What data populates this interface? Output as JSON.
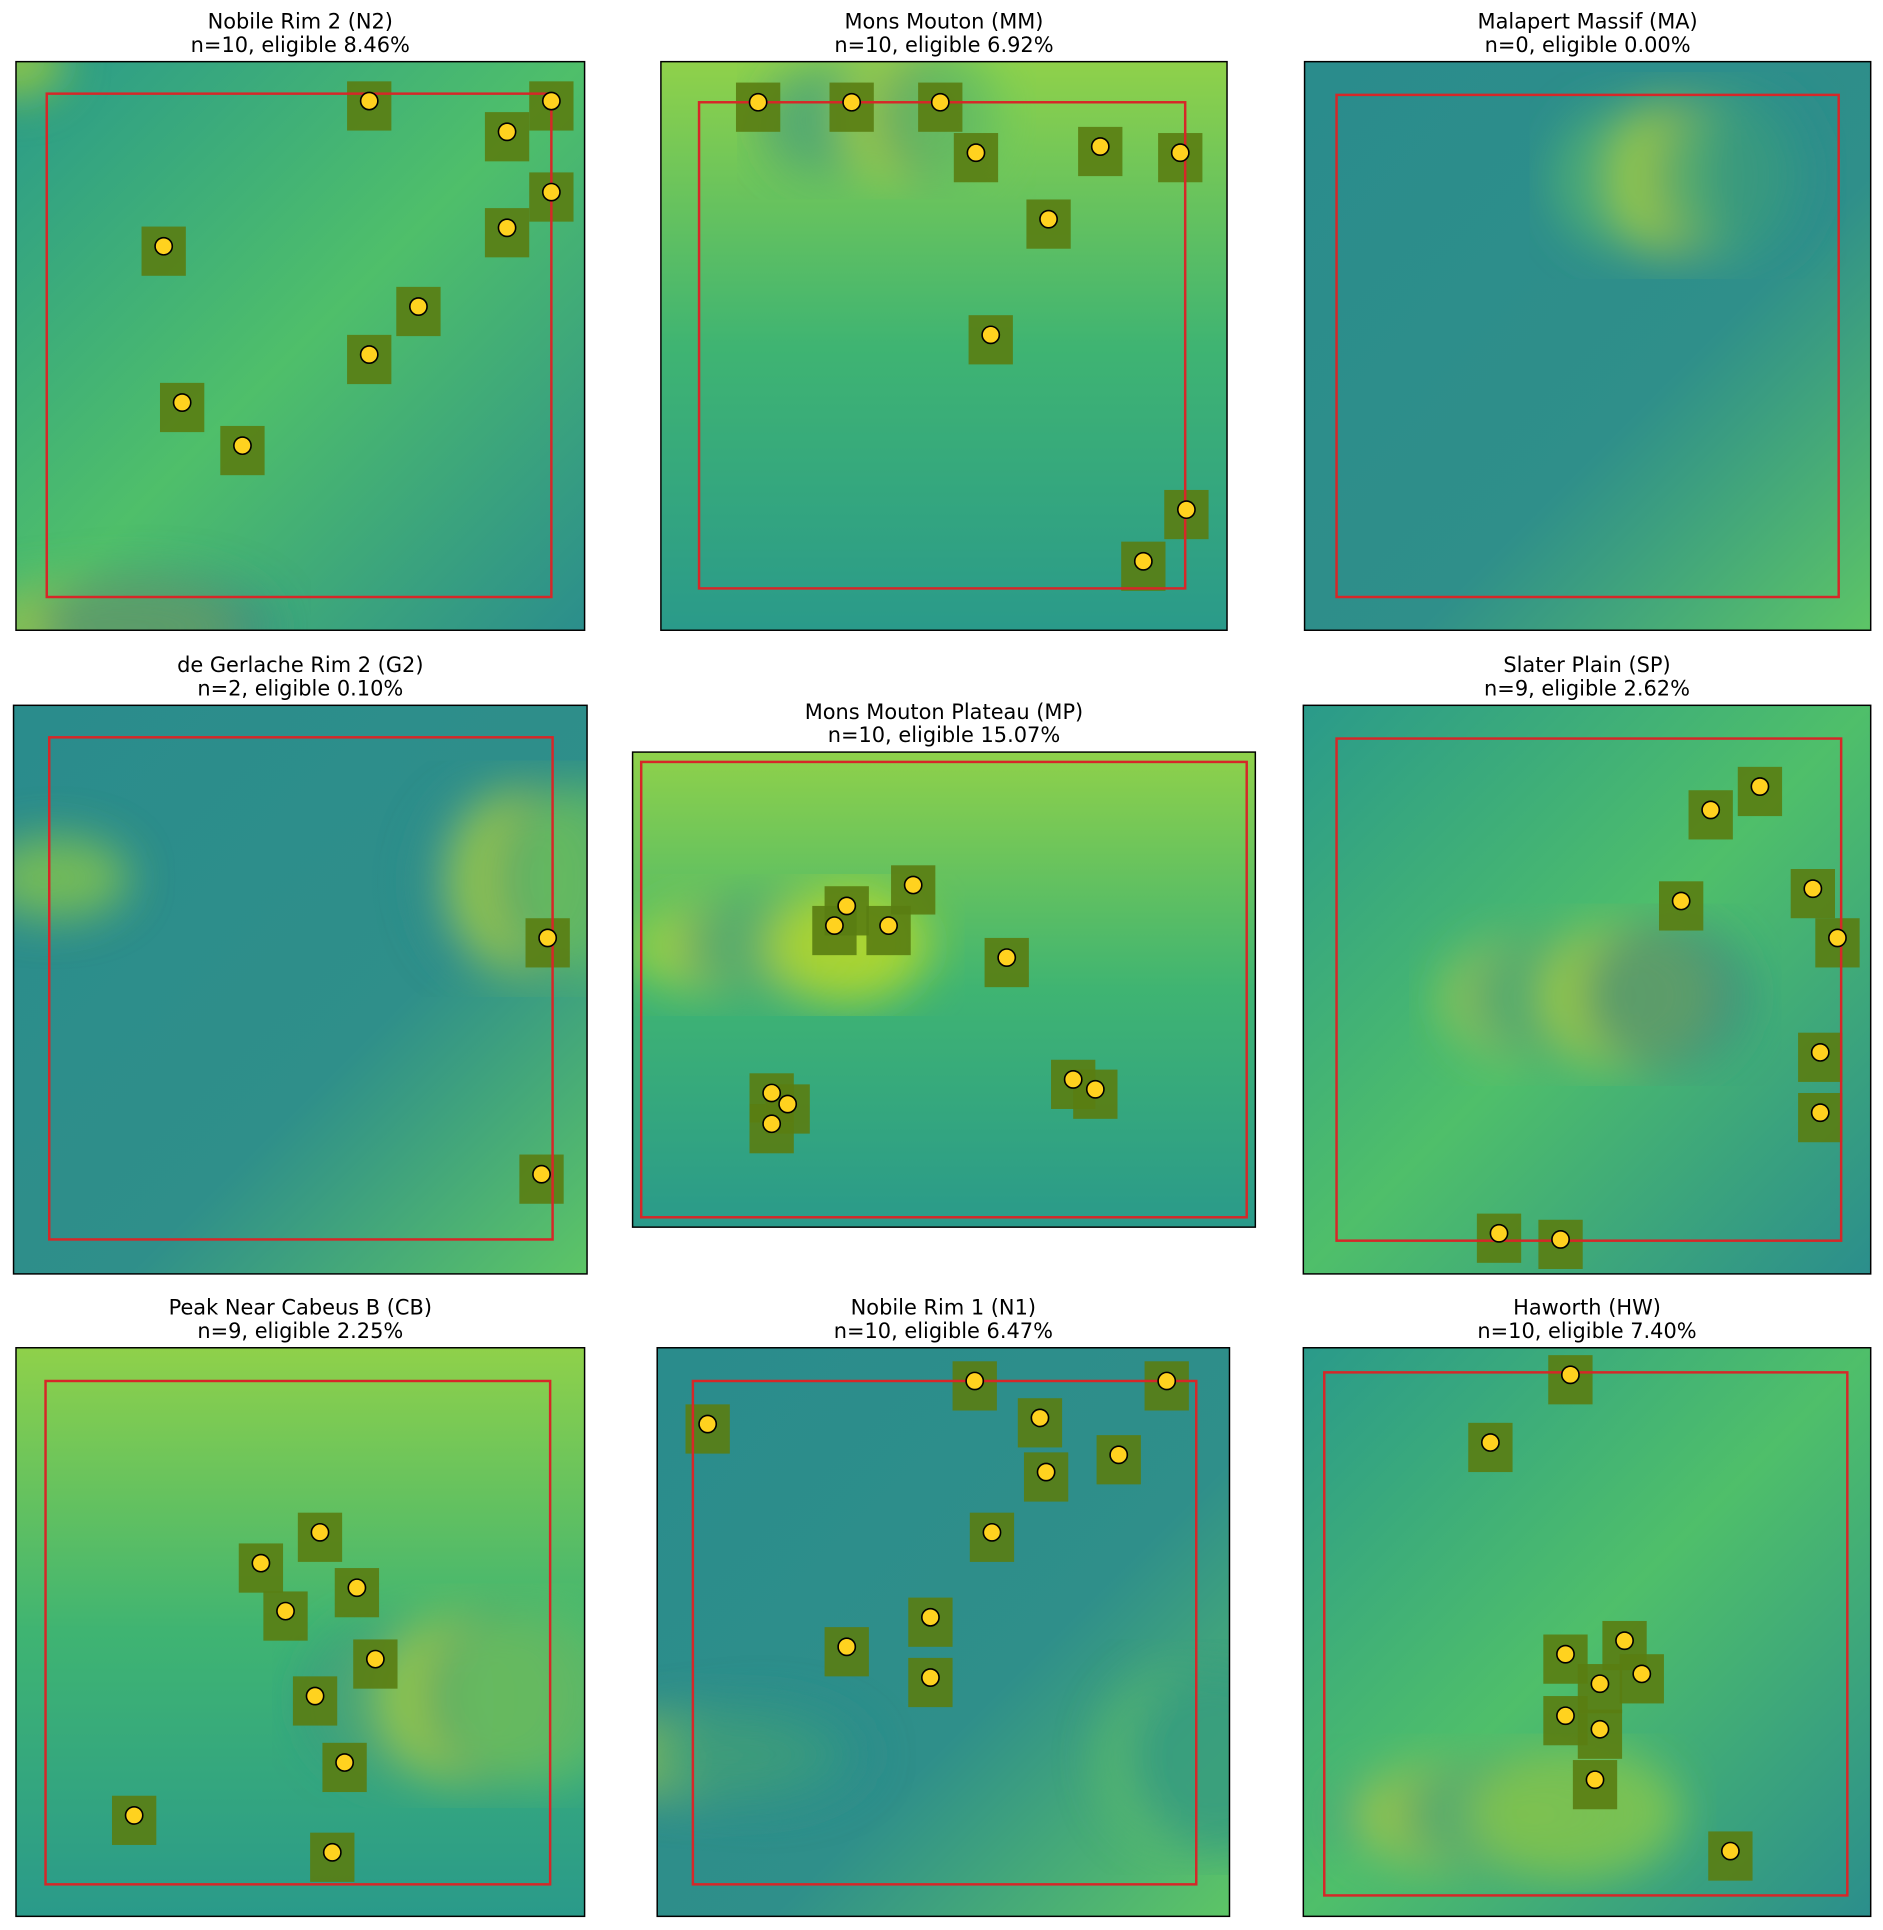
{
  "panels": [
    {
      "title": "Nobile Rim 2 (N2)",
      "subtitle": "n=10, eligible 8.46%"
    },
    {
      "title": "Mons Mouton (MM)",
      "subtitle": "n=10, eligible 6.92%"
    },
    {
      "title": "Malapert Massif (MA)",
      "subtitle": "n=0, eligible 0.00%"
    },
    {
      "title": "de Gerlache Rim 2 (G2)",
      "subtitle": "n=2, eligible 0.10%"
    },
    {
      "title": "Mons Mouton Plateau (MP)",
      "subtitle": "n=10, eligible 15.07%"
    },
    {
      "title": "Slater Plain (SP)",
      "subtitle": "n=9, eligible 2.62%"
    },
    {
      "title": "Peak Near Cabeus B (CB)",
      "subtitle": "n=9, eligible 2.25%"
    },
    {
      "title": "Nobile Rim 1 (N1)",
      "subtitle": "n=10, eligible 6.47%"
    },
    {
      "title": "Haworth (HW)",
      "subtitle": "n=10, eligible 7.40%"
    }
  ]
}
